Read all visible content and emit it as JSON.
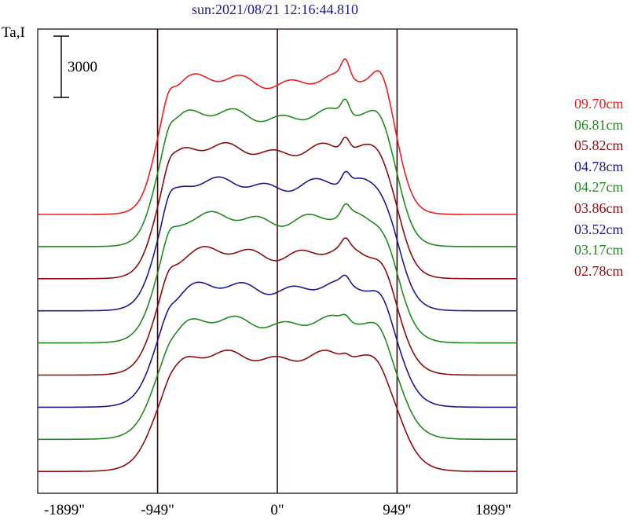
{
  "chart_data": {
    "type": "line",
    "title": "sun:2021/08/21 12:16:44.810",
    "ylabel": "Ta,I",
    "scale_bar_label": "3000",
    "xlim": [
      -1899,
      1899
    ],
    "x_ticks": [
      {
        "value": -1899,
        "label": "-1899\""
      },
      {
        "value": -949,
        "label": "-949\""
      },
      {
        "value": 0,
        "label": "0\""
      },
      {
        "value": 949,
        "label": "949\""
      },
      {
        "value": 1899,
        "label": "1899\""
      }
    ],
    "vertical_lines": [
      -949,
      0,
      949
    ],
    "grid": false,
    "legend_position": "right",
    "series": [
      {
        "name": "09.70cm",
        "color": "#e62020"
      },
      {
        "name": "06.81cm",
        "color": "#1f8a1f"
      },
      {
        "name": "05.82cm",
        "color": "#8b0d0d"
      },
      {
        "name": "04.78cm",
        "color": "#1a1a8c"
      },
      {
        "name": "04.27cm",
        "color": "#1f8a1f"
      },
      {
        "name": "03.86cm",
        "color": "#8b0d0d"
      },
      {
        "name": "03.52cm",
        "color": "#1a1a8c"
      },
      {
        "name": "03.17cm",
        "color": "#1f8a1f"
      },
      {
        "name": "02.78cm",
        "color": "#8b0d0d"
      }
    ]
  }
}
